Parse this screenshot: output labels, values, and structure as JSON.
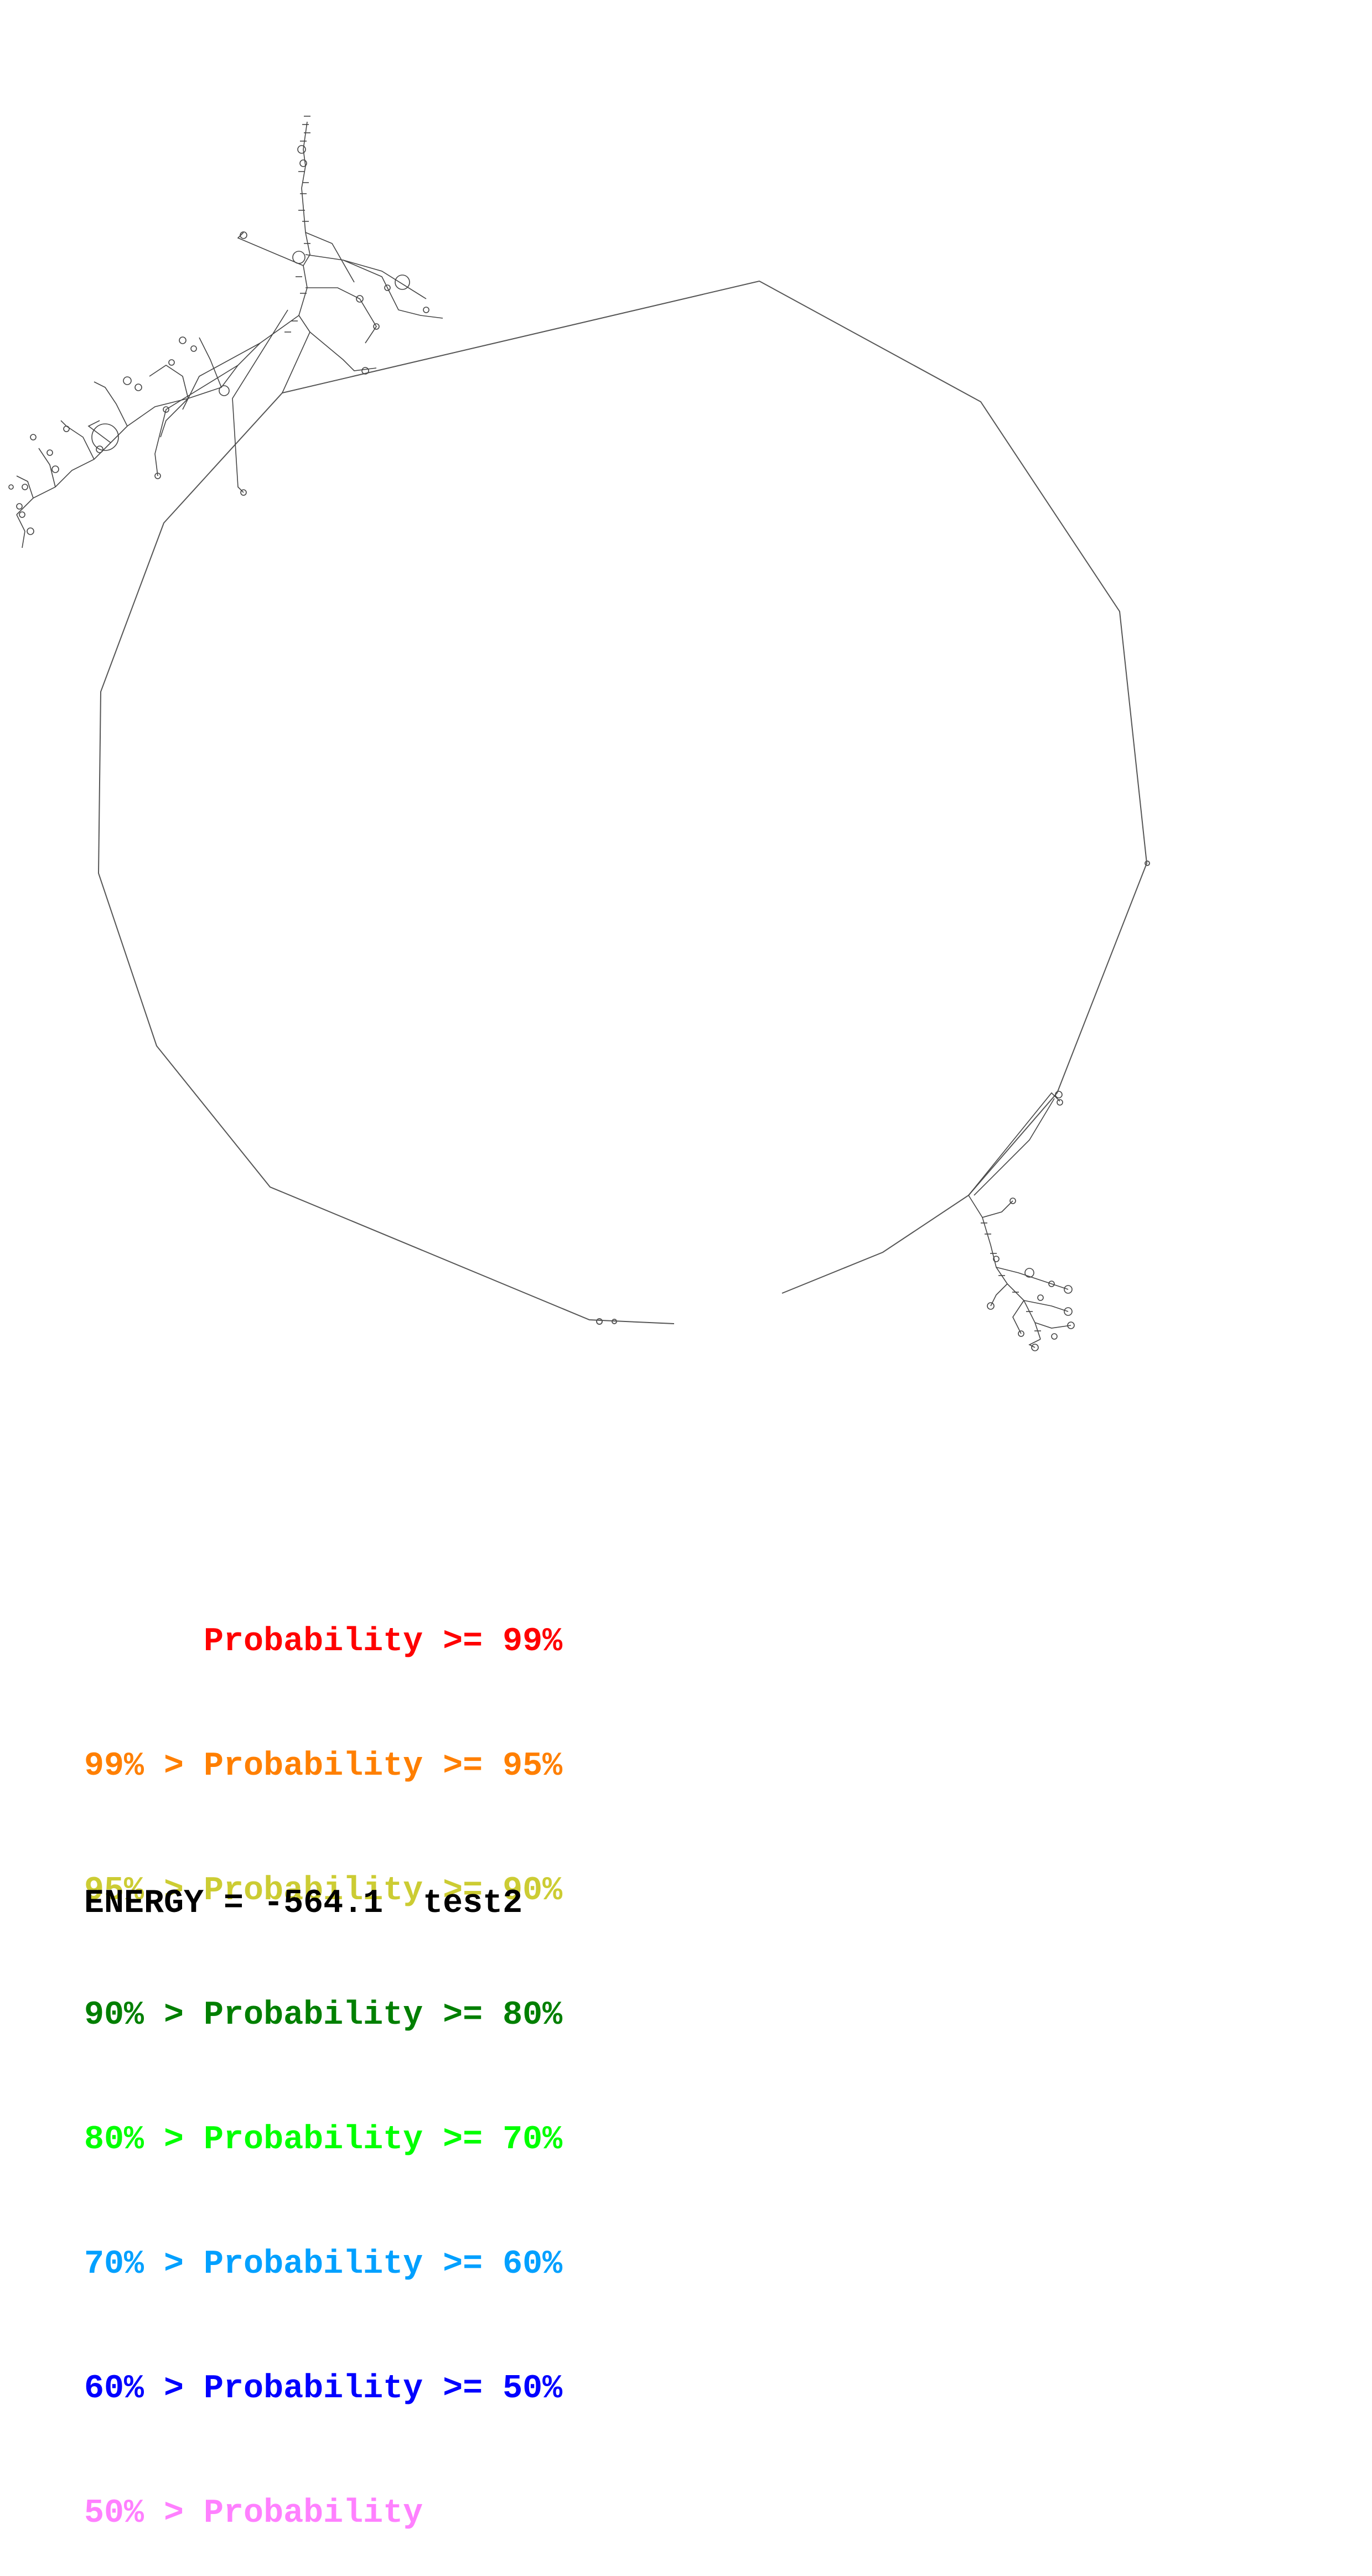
{
  "legend": [
    {
      "prefix": "",
      "label": "Probability",
      "suffix": ">= 99%",
      "color": "#ff0000"
    },
    {
      "prefix": "99% >",
      "label": "Probability",
      "suffix": ">= 95%",
      "color": "#ff7f00"
    },
    {
      "prefix": "95% >",
      "label": "Probability",
      "suffix": ">= 90%",
      "color": "#cccc33"
    },
    {
      "prefix": "90% >",
      "label": "Probability",
      "suffix": ">= 80%",
      "color": "#007f00"
    },
    {
      "prefix": "80% >",
      "label": "Probability",
      "suffix": ">= 70%",
      "color": "#00ff00"
    },
    {
      "prefix": "70% >",
      "label": "Probability",
      "suffix": ">= 60%",
      "color": "#00a0ff"
    },
    {
      "prefix": "60% >",
      "label": "Probability",
      "suffix": ">= 50%",
      "color": "#0000ff"
    },
    {
      "prefix": "50% >",
      "label": "Probability",
      "suffix": "",
      "color": "#ff80ff"
    }
  ],
  "energy": {
    "label": "ENERGY =",
    "value": "-564.1",
    "name": "test2"
  },
  "colors": {
    "backbone": "#555555",
    "text": "#000000"
  }
}
